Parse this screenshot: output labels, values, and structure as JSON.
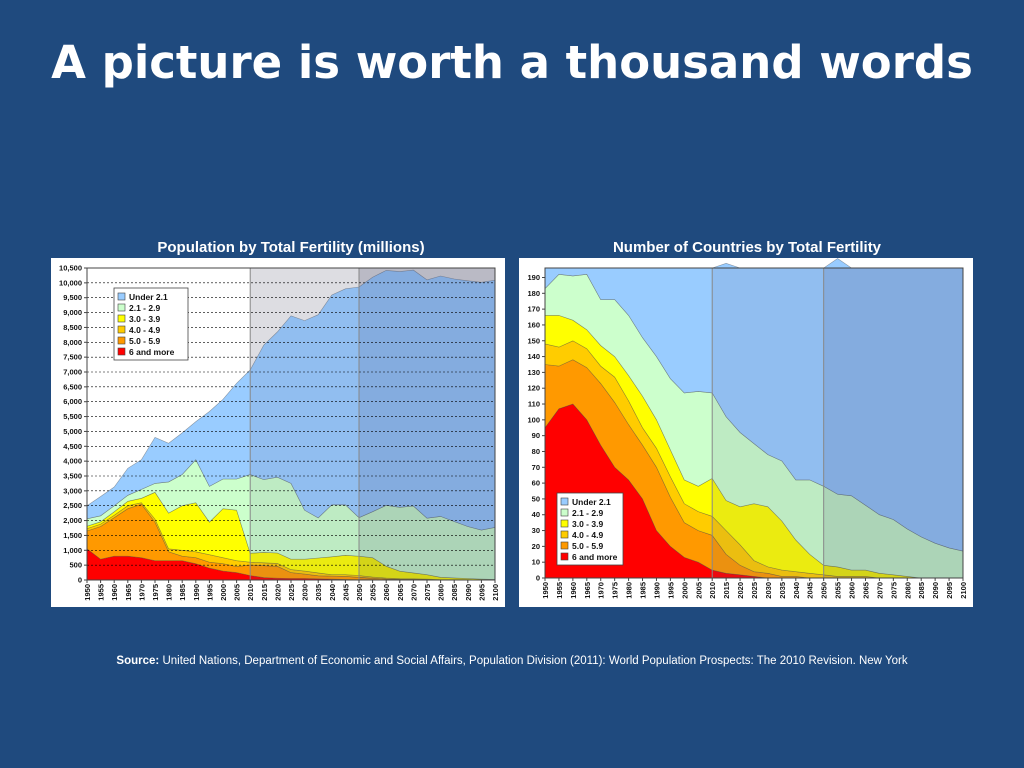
{
  "slide": {
    "title": "A picture is worth a thousand words",
    "source_label": "Source:",
    "source_text": "United Nations, Department of Economic and Social Affairs, Population Division (2011): World Population Prospects: The 2010 Revision. New York"
  },
  "colors": {
    "background": "#1f4a7e",
    "under_2_1": "#99ccff",
    "r_2_1_2_9": "#ccffcc",
    "r_3_0_3_9": "#ffff00",
    "r_4_0_4_9": "#ffcc00",
    "r_5_0_5_9": "#ff9900",
    "r_6_more": "#ff0000"
  },
  "chart_data": [
    {
      "type": "area",
      "stacked": true,
      "title": "Population by Total Fertility (millions)",
      "x": [
        1950,
        1955,
        1960,
        1965,
        1970,
        1975,
        1980,
        1985,
        1990,
        1995,
        2000,
        2005,
        2010,
        2015,
        2020,
        2025,
        2030,
        2035,
        2040,
        2045,
        2050,
        2055,
        2060,
        2065,
        2070,
        2075,
        2080,
        2085,
        2090,
        2095,
        2100
      ],
      "x_ticks": [
        1950,
        1955,
        1960,
        1965,
        1970,
        1975,
        1980,
        1985,
        1990,
        1995,
        2000,
        2005,
        2010,
        2015,
        2020,
        2025,
        2030,
        2035,
        2040,
        2045,
        2050,
        2055,
        2060,
        2065,
        2070,
        2075,
        2080,
        2085,
        2090,
        2095,
        2100
      ],
      "ylim": [
        0,
        10500
      ],
      "y_ticks": [
        "0",
        "500",
        "1,000",
        "1,500",
        "2,000",
        "2,500",
        "3,000",
        "3,500",
        "4,000",
        "4,500",
        "5,000",
        "5,500",
        "6,000",
        "6,500",
        "7,000",
        "7,500",
        "8,000",
        "8,500",
        "9,000",
        "9,500",
        "10,000",
        "10,500"
      ],
      "grid": true,
      "legend_position": "top-left",
      "shaded_periods": [
        [
          2010,
          2050
        ],
        [
          2050,
          2100
        ]
      ],
      "series": [
        {
          "name": "6 and more",
          "color": "#ff0000",
          "values": [
            1050,
            700,
            800,
            800,
            750,
            650,
            650,
            650,
            550,
            400,
            300,
            250,
            150,
            80,
            60,
            50,
            50,
            40,
            30,
            20,
            10,
            10,
            5,
            5,
            0,
            0,
            0,
            0,
            0,
            0,
            0
          ]
        },
        {
          "name": "5.0 - 5.9",
          "color": "#ff9900",
          "values": [
            600,
            1100,
            1300,
            1600,
            1800,
            1300,
            300,
            150,
            200,
            200,
            250,
            200,
            350,
            400,
            400,
            200,
            150,
            100,
            100,
            100,
            80,
            50,
            30,
            20,
            20,
            10,
            0,
            0,
            0,
            0,
            0
          ]
        },
        {
          "name": "4.0 - 4.9",
          "color": "#ffcc00",
          "values": [
            80,
            80,
            80,
            100,
            50,
            100,
            100,
            200,
            200,
            250,
            200,
            200,
            100,
            100,
            100,
            100,
            100,
            100,
            50,
            60,
            60,
            40,
            30,
            20,
            20,
            20,
            10,
            10,
            10,
            0,
            0
          ]
        },
        {
          "name": "3.0 - 3.9",
          "color": "#ffff00",
          "values": [
            80,
            80,
            120,
            150,
            150,
            900,
            1200,
            1500,
            1650,
            1100,
            1650,
            1700,
            300,
            350,
            350,
            350,
            400,
            500,
            600,
            650,
            650,
            650,
            400,
            250,
            200,
            150,
            80,
            60,
            40,
            30,
            20
          ]
        },
        {
          "name": "2.1 - 2.9",
          "color": "#ccffcc",
          "values": [
            250,
            200,
            200,
            200,
            300,
            300,
            1050,
            1050,
            1450,
            1200,
            1000,
            1050,
            2650,
            2450,
            2550,
            2550,
            1650,
            1350,
            1750,
            1700,
            1300,
            1550,
            2050,
            2150,
            2250,
            1900,
            2050,
            1900,
            1750,
            1650,
            1750
          ]
        },
        {
          "name": "Under 2.1",
          "color": "#99ccff",
          "values": [
            440,
            650,
            630,
            910,
            1000,
            1550,
            1300,
            1400,
            1280,
            2520,
            2680,
            3220,
            3520,
            4530,
            4890,
            5640,
            6380,
            6840,
            7060,
            7270,
            7760,
            7890,
            7905,
            7935,
            7940,
            8020,
            8090,
            8160,
            8270,
            8340,
            8320
          ]
        }
      ]
    },
    {
      "type": "area",
      "stacked": true,
      "title": "Number of Countries by Total Fertility",
      "x": [
        1950,
        1955,
        1960,
        1965,
        1970,
        1975,
        1980,
        1985,
        1990,
        1995,
        2000,
        2005,
        2010,
        2015,
        2020,
        2025,
        2030,
        2035,
        2040,
        2045,
        2050,
        2055,
        2060,
        2065,
        2070,
        2075,
        2080,
        2085,
        2090,
        2095,
        2100
      ],
      "x_ticks": [
        1950,
        1955,
        1960,
        1965,
        1970,
        1975,
        1980,
        1985,
        1990,
        1995,
        2000,
        2005,
        2010,
        2015,
        2020,
        2025,
        2030,
        2035,
        2040,
        2045,
        2050,
        2055,
        2060,
        2065,
        2070,
        2075,
        2080,
        2085,
        2090,
        2095,
        2100
      ],
      "ylim": [
        0,
        196
      ],
      "y_ticks": [
        "0",
        "10",
        "20",
        "30",
        "40",
        "50",
        "60",
        "70",
        "80",
        "90",
        "100",
        "110",
        "120",
        "130",
        "140",
        "150",
        "160",
        "170",
        "180",
        "190"
      ],
      "grid": false,
      "legend_position": "bottom-left",
      "total_line": 196,
      "shaded_periods": [
        [
          2010,
          2050
        ],
        [
          2050,
          2100
        ]
      ],
      "series": [
        {
          "name": "6 and more",
          "color": "#ff0000",
          "values": [
            95,
            107,
            110,
            100,
            84,
            70,
            62,
            50,
            30,
            20,
            13,
            10,
            5,
            3,
            2,
            1,
            0,
            0,
            0,
            0,
            0,
            0,
            0,
            0,
            0,
            0,
            0,
            0,
            0,
            0,
            0
          ]
        },
        {
          "name": "5.0 - 5.9",
          "color": "#ff9900",
          "values": [
            40,
            27,
            28,
            33,
            39,
            41,
            35,
            34,
            40,
            31,
            22,
            20,
            22,
            12,
            6,
            3,
            3,
            1,
            1,
            0,
            0,
            0,
            0,
            0,
            0,
            0,
            0,
            0,
            0,
            0,
            0
          ]
        },
        {
          "name": "4.0 - 4.9",
          "color": "#ffcc00",
          "values": [
            13,
            12,
            12,
            12,
            11,
            16,
            15,
            11,
            12,
            13,
            12,
            12,
            12,
            15,
            13,
            7,
            4,
            4,
            3,
            3,
            2,
            1,
            1,
            1,
            0,
            0,
            0,
            0,
            0,
            0,
            0
          ]
        },
        {
          "name": "3.0 - 3.9",
          "color": "#ffff00",
          "values": [
            18,
            20,
            13,
            12,
            13,
            13,
            16,
            20,
            18,
            17,
            15,
            16,
            24,
            19,
            24,
            36,
            38,
            31,
            20,
            12,
            6,
            6,
            4,
            4,
            3,
            2,
            1,
            0,
            0,
            0,
            0
          ]
        },
        {
          "name": "2.1 - 2.9",
          "color": "#ccffcc",
          "values": [
            17,
            26,
            28,
            35,
            29,
            36,
            38,
            37,
            40,
            45,
            55,
            60,
            54,
            53,
            47,
            38,
            33,
            38,
            38,
            47,
            50,
            46,
            47,
            41,
            37,
            35,
            30,
            26,
            22,
            19,
            17
          ]
        },
        {
          "name": "Under 2.1",
          "color": "#99ccff",
          "values": [
            13,
            4,
            5,
            4,
            20,
            20,
            30,
            44,
            56,
            70,
            79,
            78,
            79,
            97,
            104,
            111,
            118,
            122,
            134,
            134,
            138,
            149,
            144,
            150,
            156,
            159,
            165,
            170,
            174,
            177,
            179
          ]
        }
      ]
    }
  ]
}
